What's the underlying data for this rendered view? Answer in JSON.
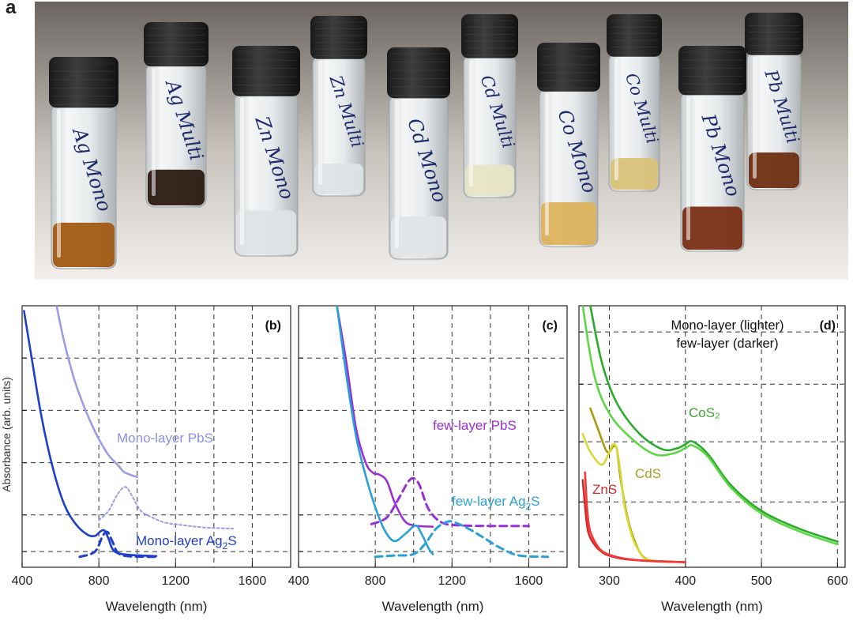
{
  "figure": {
    "panel_a_label": "a",
    "y_axis_label": "Absorbance (arb. units)",
    "x_axis_label": "Wavelength (nm)"
  },
  "vials": [
    {
      "label": "Ag Mono",
      "liquid_color": "#a35a14",
      "fill_level": 0.28
    },
    {
      "label": "Ag Multi",
      "liquid_color": "#2b1a12",
      "fill_level": 0.26
    },
    {
      "label": "Zn Mono",
      "liquid_color": "#dfe3e6",
      "fill_level": 0.28
    },
    {
      "label": "Zn Multi",
      "liquid_color": "#dde3e5",
      "fill_level": 0.23
    },
    {
      "label": "Cd Mono",
      "liquid_color": "#e1e5e7",
      "fill_level": 0.26
    },
    {
      "label": "Cd Multi",
      "liquid_color": "#e6e5c6",
      "fill_level": 0.23
    },
    {
      "label": "Co Mono",
      "liquid_color": "#dcb25c",
      "fill_level": 0.28
    },
    {
      "label": "Co Multi",
      "liquid_color": "#d9c278",
      "fill_level": 0.24
    },
    {
      "label": "Pb Mono",
      "liquid_color": "#7a2f16",
      "fill_level": 0.28
    },
    {
      "label": "Pb Multi",
      "liquid_color": "#6e2e12",
      "fill_level": 0.27
    }
  ],
  "chart_data": [
    {
      "type": "line",
      "panel_label": "(b)",
      "xlim": [
        400,
        1800
      ],
      "x_ticks": [
        "400",
        "800",
        "1200",
        "1600"
      ],
      "grid": true,
      "annotations": [
        {
          "text": "Mono-layer PbS",
          "color": "#8f8fe0"
        },
        {
          "text": "Mono-layer Ag",
          "subscript": "2",
          "suffix": "S",
          "color": "#1f3fc9"
        }
      ],
      "series": [
        {
          "color": "#9c9ce6",
          "dash": false,
          "x": [
            580,
            620,
            680,
            760,
            840,
            900,
            930,
            960,
            1000
          ],
          "y": [
            1.0,
            0.86,
            0.7,
            0.55,
            0.44,
            0.39,
            0.365,
            0.355,
            0.345
          ]
        },
        {
          "color": "#9c9ce6",
          "dash": "dot",
          "x": [
            800,
            850,
            890,
            920,
            945,
            975,
            1020,
            1080,
            1150,
            1250,
            1350,
            1500
          ],
          "y": [
            0.18,
            0.215,
            0.27,
            0.3,
            0.305,
            0.27,
            0.215,
            0.19,
            0.17,
            0.16,
            0.152,
            0.148
          ]
        },
        {
          "color": "#1f3fc9",
          "dash": false,
          "x": [
            410,
            450,
            500,
            560,
            620,
            680,
            740,
            780,
            810,
            830,
            850,
            880,
            950,
            1100
          ],
          "y": [
            0.98,
            0.8,
            0.58,
            0.38,
            0.24,
            0.165,
            0.125,
            0.12,
            0.138,
            0.14,
            0.11,
            0.062,
            0.048,
            0.043
          ]
        },
        {
          "color": "#1f3fc9",
          "dash": "dash",
          "x": [
            700,
            780,
            820,
            845,
            870,
            900,
            960,
            1100
          ],
          "y": [
            0.04,
            0.06,
            0.12,
            0.135,
            0.1,
            0.055,
            0.042,
            0.04
          ]
        }
      ]
    },
    {
      "type": "line",
      "panel_label": "(c)",
      "xlim": [
        400,
        1800
      ],
      "x_ticks": [
        "400",
        "800",
        "1200",
        "1600"
      ],
      "grid": true,
      "annotations": [
        {
          "text": "few-layer PbS",
          "color": "#9a2fd6"
        },
        {
          "text": "few-layer Ag",
          "subscript": "2",
          "suffix": "S",
          "color": "#2aa0d8"
        }
      ],
      "series": [
        {
          "color": "#9a2fd6",
          "dash": false,
          "x": [
            600,
            650,
            700,
            750,
            790,
            820,
            860,
            900,
            950,
            1000,
            1100
          ],
          "y": [
            1.0,
            0.78,
            0.53,
            0.4,
            0.36,
            0.355,
            0.33,
            0.25,
            0.18,
            0.16,
            0.155
          ]
        },
        {
          "color": "#9a2fd6",
          "dash": "dash",
          "x": [
            780,
            860,
            920,
            970,
            1000,
            1030,
            1080,
            1150,
            1250,
            1400,
            1600
          ],
          "y": [
            0.165,
            0.19,
            0.26,
            0.325,
            0.34,
            0.315,
            0.22,
            0.17,
            0.16,
            0.158,
            0.158
          ]
        },
        {
          "color": "#2aa0d8",
          "dash": false,
          "x": [
            600,
            650,
            700,
            750,
            800,
            850,
            900,
            960,
            1010,
            1040,
            1080,
            1100
          ],
          "y": [
            1.0,
            0.73,
            0.5,
            0.35,
            0.23,
            0.14,
            0.1,
            0.13,
            0.16,
            0.13,
            0.07,
            0.05
          ]
        },
        {
          "color": "#2aa0d8",
          "dash": "dash",
          "x": [
            800,
            900,
            1000,
            1060,
            1120,
            1180,
            1220,
            1280,
            1350,
            1450,
            1550,
            1700
          ],
          "y": [
            0.04,
            0.045,
            0.05,
            0.09,
            0.15,
            0.175,
            0.17,
            0.15,
            0.12,
            0.075,
            0.045,
            0.04
          ]
        }
      ]
    },
    {
      "type": "line",
      "panel_label": "(d)",
      "xlim": [
        260,
        610
      ],
      "x_ticks": [
        "300",
        "400",
        "500",
        "600"
      ],
      "grid": true,
      "legend_text": [
        "Mono-layer (lighter)",
        "few-layer (darker)"
      ],
      "annotations": [
        {
          "text": "CoS₂",
          "color": "#3ba52e"
        },
        {
          "text": "CdS",
          "color": "#a8a020"
        },
        {
          "text": "ZnS",
          "color": "#d42a2a"
        }
      ],
      "series": [
        {
          "color": "#2bab2b",
          "dash": false,
          "x": [
            275,
            290,
            310,
            340,
            370,
            390,
            400,
            410,
            430,
            460,
            500,
            550,
            600
          ],
          "y": [
            1.0,
            0.78,
            0.62,
            0.5,
            0.44,
            0.445,
            0.46,
            0.47,
            0.42,
            0.3,
            0.2,
            0.13,
            0.08
          ]
        },
        {
          "color": "#5ed644",
          "dash": false,
          "x": [
            265,
            280,
            300,
            330,
            360,
            385,
            400,
            410,
            430,
            460,
            500,
            550,
            600
          ],
          "y": [
            1.0,
            0.73,
            0.58,
            0.48,
            0.42,
            0.425,
            0.445,
            0.455,
            0.41,
            0.29,
            0.19,
            0.12,
            0.07
          ]
        },
        {
          "color": "#a89a12",
          "dash": false,
          "x": [
            275,
            285,
            295,
            300,
            305,
            310,
            315,
            325,
            335,
            345,
            360,
            400
          ],
          "y": [
            0.6,
            0.52,
            0.44,
            0.43,
            0.45,
            0.44,
            0.32,
            0.16,
            0.07,
            0.02,
            0.005,
            0.0
          ]
        },
        {
          "color": "#d8d832",
          "dash": false,
          "x": [
            265,
            275,
            290,
            300,
            305,
            310,
            315,
            320,
            330,
            340,
            350,
            380
          ],
          "y": [
            0.5,
            0.43,
            0.38,
            0.43,
            0.46,
            0.44,
            0.34,
            0.22,
            0.1,
            0.04,
            0.01,
            0.0
          ]
        },
        {
          "color": "#d42a2a",
          "dash": false,
          "x": [
            265,
            268,
            272,
            280,
            290,
            300,
            320,
            350,
            380,
            400
          ],
          "y": [
            0.32,
            0.22,
            0.12,
            0.07,
            0.04,
            0.025,
            0.012,
            0.005,
            0.002,
            0.0
          ]
        },
        {
          "color": "#f03a3a",
          "dash": false,
          "x": [
            268,
            271,
            275,
            285,
            295,
            310,
            330,
            360,
            400
          ],
          "y": [
            0.35,
            0.2,
            0.12,
            0.06,
            0.035,
            0.02,
            0.01,
            0.003,
            0.0
          ]
        }
      ]
    }
  ]
}
